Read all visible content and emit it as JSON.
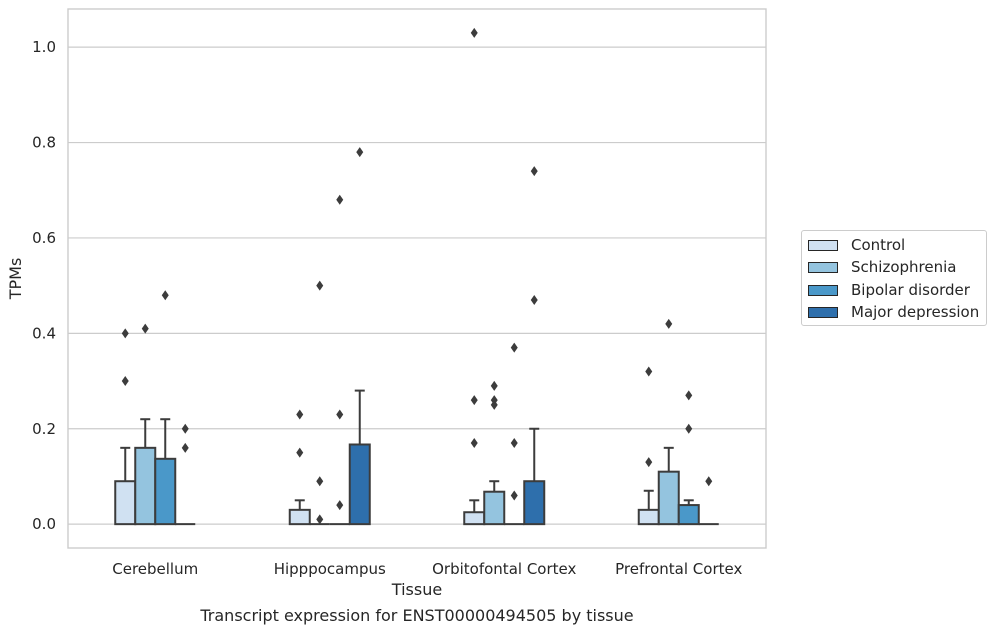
{
  "chart_data": {
    "type": "bar",
    "xlabel": "Tissue",
    "ylabel": "TPMs",
    "caption": "Transcript expression for ENST00000494505 by tissue",
    "categories": [
      "Cerebellum",
      "Hipppocampus",
      "Orbitofontal Cortex",
      "Prefrontal Cortex"
    ],
    "ylim": [
      -0.05,
      1.08
    ],
    "yticks": [
      0.0,
      0.2,
      0.4,
      0.6,
      0.8,
      1.0
    ],
    "ytick_labels": [
      "0.0",
      "0.2",
      "0.4",
      "0.6",
      "0.8",
      "1.0"
    ],
    "grid": "horizontal",
    "legend_position": "right",
    "series": [
      {
        "name": "Control",
        "color": "#d0e1f2",
        "values": [
          0.09,
          0.03,
          0.025,
          0.03
        ],
        "error_upper": [
          0.16,
          0.05,
          0.05,
          0.07
        ],
        "outliers": [
          [
            0.3,
            0.4
          ],
          [
            0.15,
            0.23
          ],
          [
            0.17,
            0.26,
            1.03
          ],
          [
            0.13,
            0.32
          ]
        ]
      },
      {
        "name": "Schizophrenia",
        "color": "#94c4df",
        "values": [
          0.16,
          0.0,
          0.068,
          0.11
        ],
        "error_upper": [
          0.22,
          0.0,
          0.09,
          0.16
        ],
        "outliers": [
          [
            0.41
          ],
          [
            0.01,
            0.09,
            0.5
          ],
          [
            0.25,
            0.26,
            0.29
          ],
          [
            0.42
          ]
        ]
      },
      {
        "name": "Bipolar disorder",
        "color": "#4a98c9",
        "values": [
          0.137,
          0.0,
          0.0,
          0.04
        ],
        "error_upper": [
          0.22,
          0.0,
          0.0,
          0.05
        ],
        "outliers": [
          [
            0.48
          ],
          [
            0.04,
            0.23,
            0.68
          ],
          [
            0.06,
            0.17,
            0.37
          ],
          [
            0.2,
            0.27
          ]
        ]
      },
      {
        "name": "Major depression",
        "color": "#2e6fac",
        "values": [
          0.0,
          0.167,
          0.09,
          0.0
        ],
        "error_upper": [
          0.0,
          0.28,
          0.2,
          0.0
        ],
        "outliers": [
          [
            0.16,
            0.2
          ],
          [
            0.78
          ],
          [
            0.47,
            0.74
          ],
          [
            0.09
          ]
        ]
      }
    ]
  }
}
